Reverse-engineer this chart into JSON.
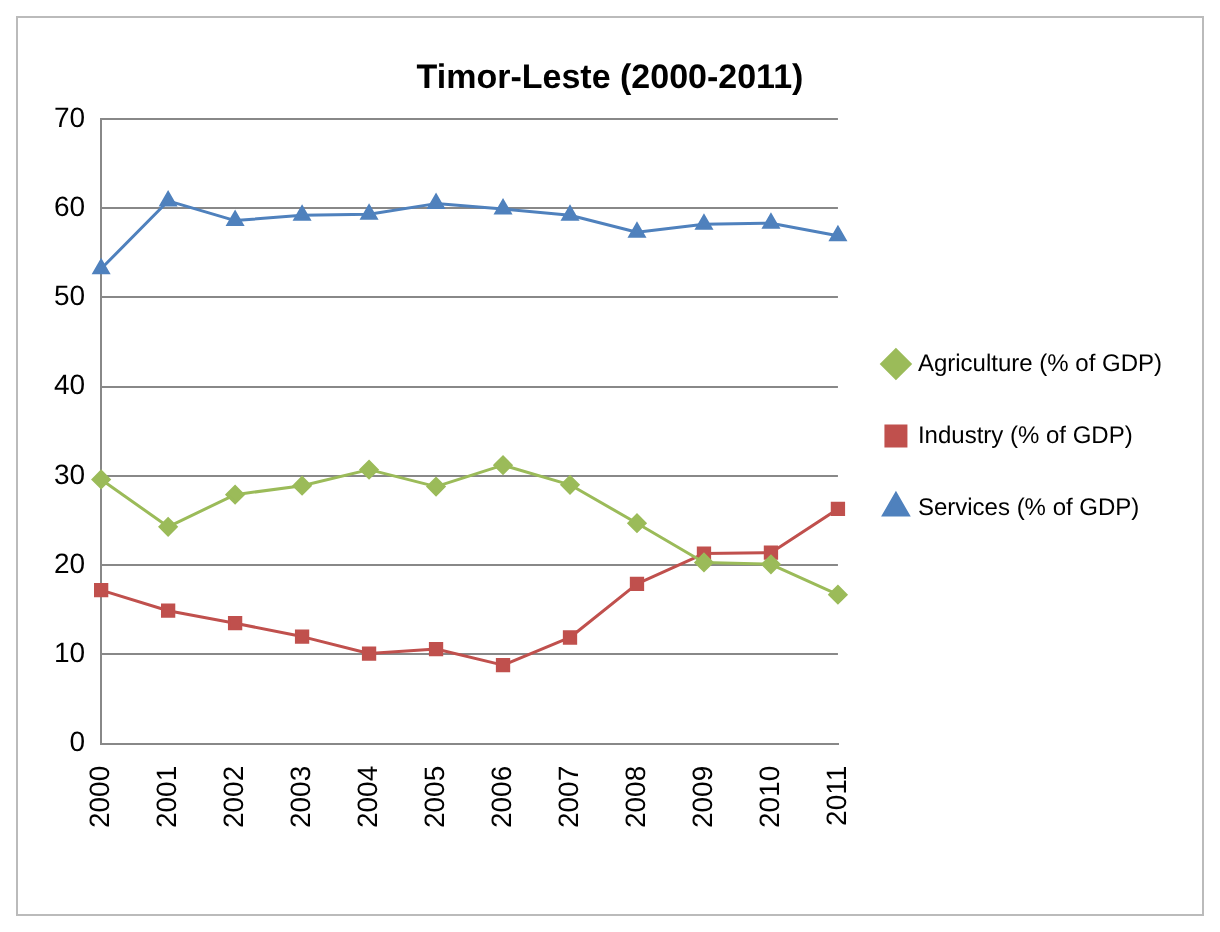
{
  "chart_data": {
    "type": "line",
    "title": "Timor-Leste (2000-2011)",
    "categories": [
      "2000",
      "2001",
      "2002",
      "2003",
      "2004",
      "2005",
      "2006",
      "2007",
      "2008",
      "2009",
      "2010",
      "2011"
    ],
    "series": [
      {
        "name": "Agriculture (% of GDP)",
        "color": "#9bbb59",
        "marker": "diamond",
        "values": [
          29.6,
          24.3,
          27.9,
          28.9,
          30.7,
          28.8,
          31.2,
          29.0,
          24.7,
          20.3,
          20.1,
          16.7
        ]
      },
      {
        "name": "Industry (% of GDP)",
        "color": "#c0504d",
        "marker": "square",
        "values": [
          17.2,
          14.9,
          13.5,
          12.0,
          10.1,
          10.6,
          8.8,
          11.9,
          17.9,
          21.3,
          21.4,
          26.3
        ]
      },
      {
        "name": "Services (% of GDP)",
        "color": "#4f81bd",
        "marker": "triangle",
        "values": [
          53.2,
          60.8,
          58.6,
          59.2,
          59.3,
          60.5,
          59.9,
          59.2,
          57.3,
          58.2,
          58.3,
          56.9
        ]
      }
    ],
    "ylim": [
      0,
      70
    ],
    "yticks": [
      0,
      10,
      20,
      30,
      40,
      50,
      60,
      70
    ],
    "grid": "y",
    "legend": "right"
  }
}
